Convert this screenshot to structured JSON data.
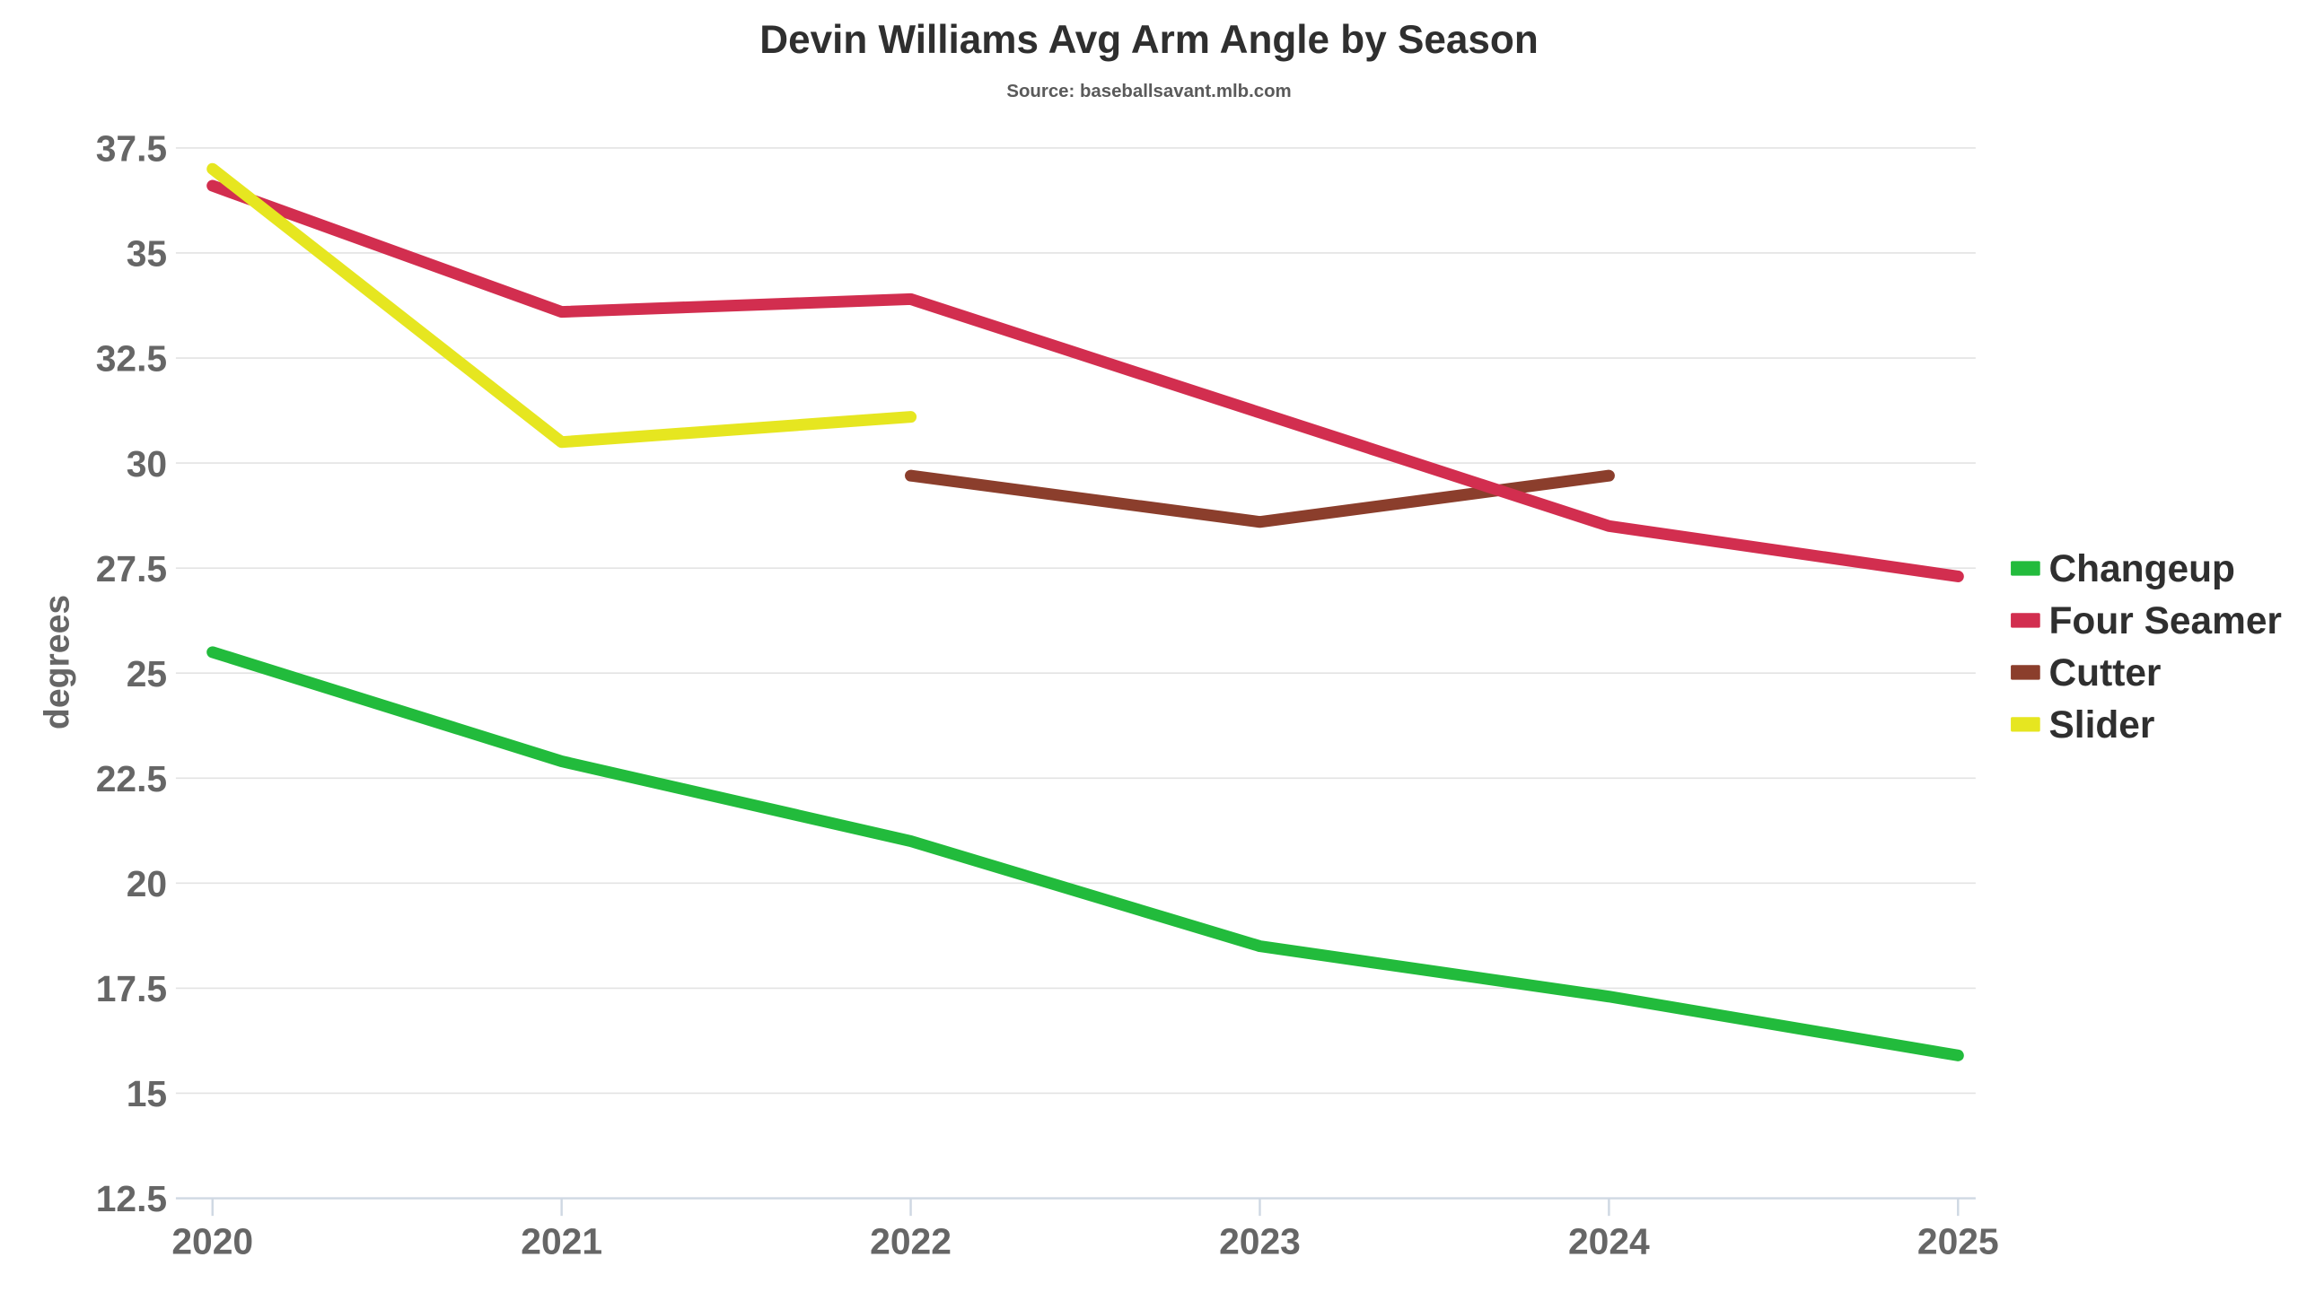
{
  "chart_data": {
    "type": "line",
    "title": "Devin Williams Avg Arm Angle by Season",
    "subtitle": "Source: baseballsavant.mlb.com",
    "xlabel": "",
    "ylabel": "degrees",
    "x": [
      "2020",
      "2021",
      "2022",
      "2023",
      "2024",
      "2025"
    ],
    "ylim": [
      12.5,
      37.5
    ],
    "yticks": [
      "12.5",
      "15",
      "17.5",
      "20",
      "22.5",
      "25",
      "27.5",
      "30",
      "32.5",
      "35",
      "37.5"
    ],
    "grid": true,
    "legend_position": "right",
    "series": [
      {
        "name": "Changeup",
        "color": "#22bb3c",
        "values": [
          25.5,
          22.9,
          21.0,
          18.5,
          17.3,
          15.9
        ]
      },
      {
        "name": "Four Seamer",
        "color": "#d22e4f",
        "values": [
          36.6,
          33.6,
          33.9,
          31.2,
          28.5,
          27.3
        ]
      },
      {
        "name": "Cutter",
        "color": "#8b3e2c",
        "values": [
          null,
          null,
          29.7,
          28.6,
          29.7,
          null
        ]
      },
      {
        "name": "Slider",
        "color": "#e6e620",
        "values": [
          37.0,
          30.5,
          31.1,
          null,
          null,
          null
        ]
      }
    ]
  }
}
